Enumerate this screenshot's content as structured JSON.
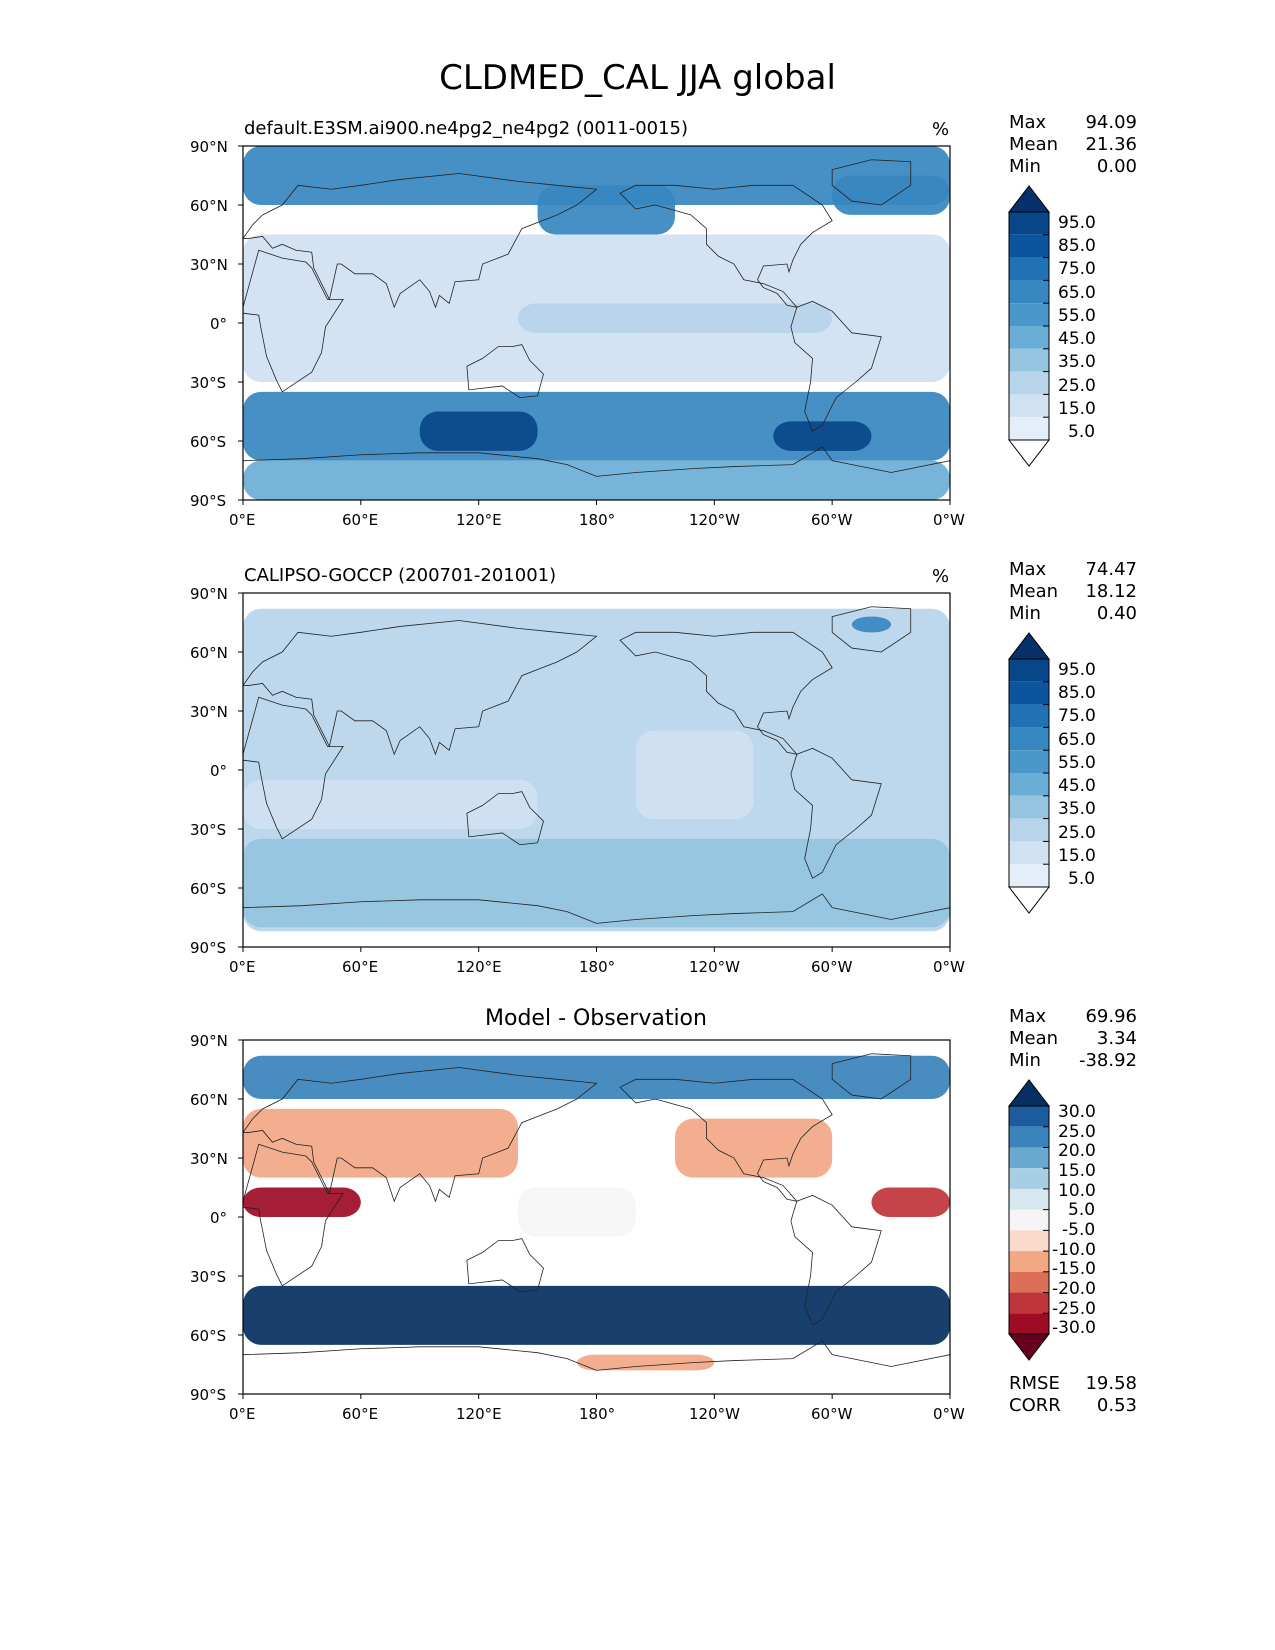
{
  "suptitle": "CLDMED_CAL JJA global",
  "panels": [
    {
      "left_title": "default.E3SM.ai900.ne4pg2_ne4pg2 (0011-0015)",
      "center_title": "",
      "unit": "%",
      "stats": [
        {
          "label": "Max",
          "value": "94.09"
        },
        {
          "label": "Mean",
          "value": "21.36"
        },
        {
          "label": "Min",
          "value": "0.00"
        }
      ],
      "extra_stats": []
    },
    {
      "left_title": "CALIPSO-GOCCP (200701-201001)",
      "center_title": "",
      "unit": "%",
      "stats": [
        {
          "label": "Max",
          "value": "74.47"
        },
        {
          "label": "Mean",
          "value": "18.12"
        },
        {
          "label": "Min",
          "value": "0.40"
        }
      ],
      "extra_stats": []
    },
    {
      "left_title": "",
      "center_title": "Model - Observation",
      "unit": "",
      "stats": [
        {
          "label": "Max",
          "value": "69.96"
        },
        {
          "label": "Mean",
          "value": "3.34"
        },
        {
          "label": "Min",
          "value": "-38.92"
        }
      ],
      "extra_stats": [
        {
          "label": "RMSE",
          "value": "19.58"
        },
        {
          "label": "CORR",
          "value": "0.53"
        }
      ]
    }
  ],
  "chart_data": [
    {
      "type": "heatmap",
      "map_projection": "plate-carree",
      "title": "default.E3SM.ai900.ne4pg2_ne4pg2 (0011-0015)",
      "units": "%",
      "x_ticks": [
        "0°E",
        "60°E",
        "120°E",
        "180°",
        "120°W",
        "60°W",
        "0°W"
      ],
      "y_ticks": [
        "90°N",
        "60°N",
        "30°N",
        "0°",
        "30°S",
        "60°S",
        "90°S"
      ],
      "xlim": [
        0,
        360
      ],
      "ylim": [
        -90,
        90
      ],
      "colorbar": {
        "colormap": "Blues",
        "levels": [
          "95.0",
          "85.0",
          "75.0",
          "65.0",
          "55.0",
          "45.0",
          "35.0",
          "25.0",
          "15.0",
          "5.0"
        ],
        "colors": [
          "#08306b",
          "#08468a",
          "#0b559f",
          "#2171b5",
          "#3787c0",
          "#4a98c9",
          "#6aaed6",
          "#94c4df",
          "#b7d4ea",
          "#d0e1f2",
          "#e3eef9",
          "#ffffff"
        ],
        "extend": "both"
      },
      "stats": {
        "max": 94.09,
        "mean": 21.36,
        "min": 0.0
      },
      "regions": [
        {
          "lat": [
            60,
            90
          ],
          "lon": [
            0,
            360
          ],
          "value": 55
        },
        {
          "lat": [
            45,
            70
          ],
          "lon": [
            150,
            220
          ],
          "value": 60
        },
        {
          "lat": [
            55,
            75
          ],
          "lon": [
            300,
            360
          ],
          "value": 60
        },
        {
          "lat": [
            -30,
            45
          ],
          "lon": [
            0,
            360
          ],
          "value": 5
        },
        {
          "lat": [
            -5,
            10
          ],
          "lon": [
            140,
            300
          ],
          "value": 15
        },
        {
          "lat": [
            -70,
            -35
          ],
          "lon": [
            0,
            360
          ],
          "value": 55
        },
        {
          "lat": [
            -65,
            -45
          ],
          "lon": [
            90,
            150
          ],
          "value": 85
        },
        {
          "lat": [
            -65,
            -50
          ],
          "lon": [
            270,
            320
          ],
          "value": 85
        },
        {
          "lat": [
            -90,
            -70
          ],
          "lon": [
            0,
            360
          ],
          "value": 35
        }
      ]
    },
    {
      "type": "heatmap",
      "map_projection": "plate-carree",
      "title": "CALIPSO-GOCCP (200701-201001)",
      "units": "%",
      "x_ticks": [
        "0°E",
        "60°E",
        "120°E",
        "180°",
        "120°W",
        "60°W",
        "0°W"
      ],
      "y_ticks": [
        "90°N",
        "60°N",
        "30°N",
        "0°",
        "30°S",
        "60°S",
        "90°S"
      ],
      "xlim": [
        0,
        360
      ],
      "ylim": [
        -90,
        90
      ],
      "data_lat_range": [
        -82,
        82
      ],
      "colorbar": {
        "colormap": "Blues",
        "levels": [
          "95.0",
          "85.0",
          "75.0",
          "65.0",
          "55.0",
          "45.0",
          "35.0",
          "25.0",
          "15.0",
          "5.0"
        ],
        "colors": [
          "#08306b",
          "#08468a",
          "#0b559f",
          "#2171b5",
          "#3787c0",
          "#4a98c9",
          "#6aaed6",
          "#94c4df",
          "#b7d4ea",
          "#d0e1f2",
          "#e3eef9",
          "#ffffff"
        ],
        "extend": "both"
      },
      "stats": {
        "max": 74.47,
        "mean": 18.12,
        "min": 0.4
      },
      "regions": [
        {
          "lat": [
            -82,
            82
          ],
          "lon": [
            0,
            360
          ],
          "value": 20
        },
        {
          "lat": [
            -30,
            -5
          ],
          "lon": [
            0,
            150
          ],
          "value": 10
        },
        {
          "lat": [
            -25,
            20
          ],
          "lon": [
            200,
            260
          ],
          "value": 10
        },
        {
          "lat": [
            -80,
            -35
          ],
          "lon": [
            0,
            360
          ],
          "value": 25
        },
        {
          "lat": [
            70,
            78
          ],
          "lon": [
            310,
            330
          ],
          "value": 55
        }
      ]
    },
    {
      "type": "heatmap",
      "map_projection": "plate-carree",
      "title": "Model - Observation",
      "units": "",
      "x_ticks": [
        "0°E",
        "60°E",
        "120°E",
        "180°",
        "120°W",
        "60°W",
        "0°W"
      ],
      "y_ticks": [
        "90°N",
        "60°N",
        "30°N",
        "0°",
        "30°S",
        "60°S",
        "90°S"
      ],
      "xlim": [
        0,
        360
      ],
      "ylim": [
        -90,
        90
      ],
      "data_lat_range": [
        -82,
        82
      ],
      "colorbar": {
        "colormap": "RdBu",
        "levels": [
          "30.0",
          "25.0",
          "20.0",
          "15.0",
          "10.0",
          "5.0",
          "-5.0",
          "-10.0",
          "-15.0",
          "-20.0",
          "-25.0",
          "-30.0"
        ],
        "colors": [
          "#053061",
          "#1c5c9e",
          "#3a83bb",
          "#6aa9d0",
          "#a7cfe4",
          "#d6e7f0",
          "#f5f5f5",
          "#fbdacb",
          "#f2a785",
          "#dc6f59",
          "#c0343b",
          "#9e0b25",
          "#67001f"
        ],
        "extend": "both"
      },
      "stats": {
        "max": 69.96,
        "mean": 3.34,
        "min": -38.92,
        "rmse": 19.58,
        "corr": 0.53
      },
      "regions": [
        {
          "lat": [
            60,
            82
          ],
          "lon": [
            0,
            360
          ],
          "value": 22
        },
        {
          "lat": [
            20,
            55
          ],
          "lon": [
            0,
            140
          ],
          "value": -15
        },
        {
          "lat": [
            20,
            50
          ],
          "lon": [
            220,
            300
          ],
          "value": -15
        },
        {
          "lat": [
            0,
            15
          ],
          "lon": [
            0,
            60
          ],
          "value": -28
        },
        {
          "lat": [
            0,
            15
          ],
          "lon": [
            320,
            360
          ],
          "value": -25
        },
        {
          "lat": [
            -10,
            15
          ],
          "lon": [
            140,
            200
          ],
          "value": 0
        },
        {
          "lat": [
            -65,
            -35
          ],
          "lon": [
            0,
            360
          ],
          "value": 32
        },
        {
          "lat": [
            -78,
            -70
          ],
          "lon": [
            170,
            240
          ],
          "value": -12
        }
      ]
    }
  ]
}
